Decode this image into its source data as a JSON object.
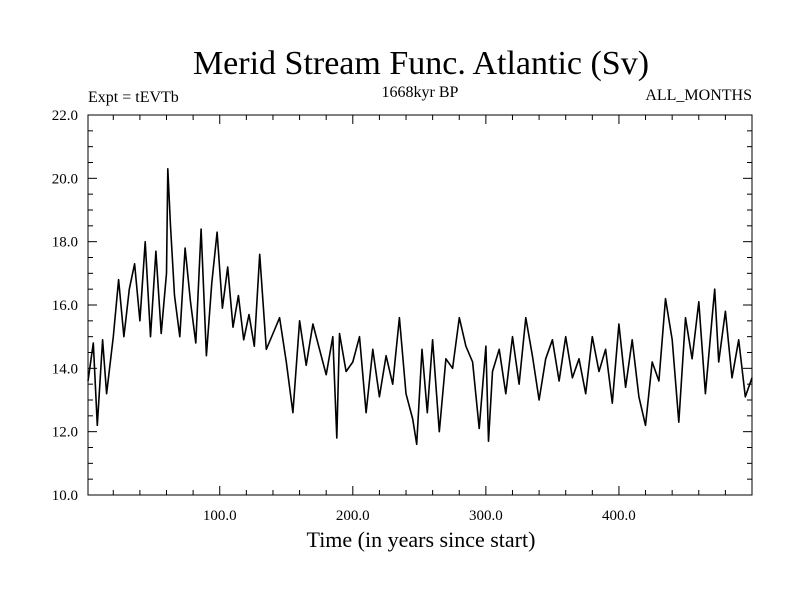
{
  "chart_data": {
    "type": "line",
    "title": "Merid Stream Func. Atlantic (Sv)",
    "subtitle_left": "Expt = tEVTb",
    "subtitle_center": "1668kyr BP",
    "subtitle_right": "ALL_MONTHS",
    "xlabel": "Time (in years since start)",
    "ylabel": "",
    "xlim": [
      1,
      500
    ],
    "ylim": [
      10,
      22
    ],
    "x_tick_labels": [
      "100.0",
      "200.0",
      "300.0",
      "400.0"
    ],
    "y_tick_labels": [
      "10.0",
      "12.0",
      "14.0",
      "16.0",
      "18.0",
      "20.0",
      "22.0"
    ],
    "series": [
      {
        "name": "Merid Stream Func. Atlantic",
        "color": "#000000",
        "x": [
          1,
          5,
          8,
          12,
          15,
          20,
          24,
          28,
          32,
          36,
          40,
          44,
          48,
          52,
          56,
          60,
          61,
          63,
          66,
          70,
          74,
          78,
          82,
          86,
          90,
          94,
          98,
          102,
          106,
          110,
          114,
          118,
          122,
          126,
          130,
          135,
          140,
          145,
          150,
          155,
          160,
          165,
          170,
          175,
          180,
          185,
          188,
          190,
          195,
          200,
          205,
          210,
          215,
          220,
          225,
          230,
          235,
          240,
          245,
          248,
          252,
          256,
          260,
          265,
          270,
          275,
          280,
          285,
          290,
          295,
          300,
          302,
          305,
          310,
          315,
          320,
          325,
          330,
          335,
          340,
          345,
          350,
          355,
          360,
          365,
          370,
          375,
          380,
          385,
          390,
          395,
          400,
          405,
          410,
          415,
          420,
          425,
          430,
          435,
          440,
          445,
          450,
          455,
          460,
          465,
          470,
          472,
          475,
          480,
          485,
          490,
          495,
          500
        ],
        "y": [
          13.6,
          14.8,
          12.2,
          14.9,
          13.2,
          15.0,
          16.8,
          15.0,
          16.5,
          17.3,
          15.5,
          18.0,
          15.0,
          17.7,
          15.1,
          17.0,
          20.3,
          18.5,
          16.3,
          15.0,
          17.8,
          16.1,
          14.8,
          18.4,
          14.4,
          16.7,
          18.3,
          15.9,
          17.2,
          15.3,
          16.3,
          14.9,
          15.7,
          14.7,
          17.6,
          14.6,
          15.1,
          15.6,
          14.2,
          12.6,
          15.5,
          14.1,
          15.4,
          14.6,
          13.8,
          15.0,
          11.8,
          15.1,
          13.9,
          14.2,
          15.0,
          12.6,
          14.6,
          13.1,
          14.4,
          13.5,
          15.6,
          13.2,
          12.4,
          11.6,
          14.6,
          12.6,
          14.9,
          12.0,
          14.3,
          14.0,
          15.6,
          14.7,
          14.2,
          12.1,
          14.7,
          11.7,
          13.9,
          14.6,
          13.2,
          15.0,
          13.5,
          15.6,
          14.4,
          13.0,
          14.3,
          14.9,
          13.6,
          15.0,
          13.7,
          14.3,
          13.2,
          15.0,
          13.9,
          14.6,
          12.9,
          15.4,
          13.4,
          14.9,
          13.1,
          12.2,
          14.2,
          13.6,
          16.2,
          14.9,
          12.3,
          15.6,
          14.3,
          16.1,
          13.2,
          15.6,
          16.5,
          14.2,
          15.8,
          13.7,
          14.9,
          13.1,
          13.7
        ]
      }
    ]
  }
}
